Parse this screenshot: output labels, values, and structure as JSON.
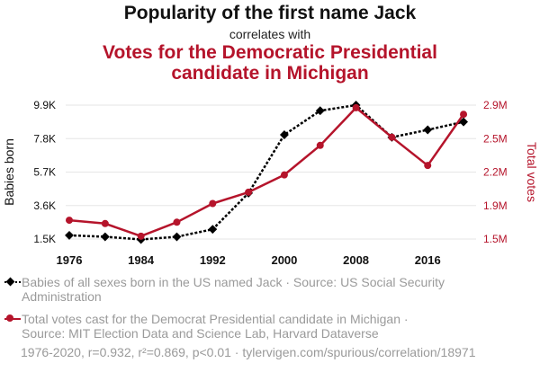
{
  "title": "Popularity of the first name Jack",
  "subtitle": "correlates with",
  "title2_line1": "Votes for the Democratic Presidential",
  "title2_line2": "candidate in Michigan",
  "chart_data": {
    "type": "line",
    "x": [
      1976,
      1980,
      1984,
      1988,
      1992,
      1996,
      2000,
      2004,
      2008,
      2012,
      2016,
      2020
    ],
    "xticks": [
      "1976",
      "1984",
      "1992",
      "2000",
      "2008",
      "2016"
    ],
    "xlim": [
      1976,
      2021
    ],
    "series": [
      {
        "name": "Babies of all sexes born in the US named Jack",
        "axis": "left",
        "color": "#000000",
        "style": "dotted",
        "marker": "diamond",
        "values": [
          1730,
          1640,
          1470,
          1640,
          2110,
          4380,
          8040,
          9550,
          9900,
          7880,
          8350,
          8850
        ]
      },
      {
        "name": "Total votes cast for the Democrat Presidential candidate in Michigan",
        "axis": "right",
        "color": "#b5142b",
        "style": "solid",
        "marker": "circle",
        "values": [
          1696714,
          1661532,
          1529638,
          1675783,
          1871182,
          1989653,
          2170418,
          2479183,
          2872579,
          2564569,
          2268839,
          2804040
        ]
      }
    ],
    "yleft": {
      "label": "Babies born",
      "ticks": [
        "1.5K",
        "3.6K",
        "5.7K",
        "7.8K",
        "9.9K"
      ],
      "range": [
        1500,
        9900
      ]
    },
    "yright": {
      "label": "Total votes",
      "ticks": [
        "1.5M",
        "1.9M",
        "2.2M",
        "2.5M",
        "2.9M"
      ],
      "range": [
        1500000,
        2900000
      ]
    },
    "grid": "horizontal"
  },
  "legend": [
    {
      "line1": "Babies of all sexes born in the US named Jack · Source: US Social Security",
      "line2": "Administration",
      "color": "#000000",
      "marker": "diamond"
    },
    {
      "line1": "Total votes cast for the Democrat Presidential candidate in Michigan ·",
      "line2": "Source: MIT Election Data and Science Lab, Harvard Dataverse",
      "color": "#b5142b",
      "marker": "circle"
    }
  ],
  "footnote": "1976-2020, r=0.932, r²=0.869, p<0.01 · tylervigen.com/spurious/correlation/18971"
}
